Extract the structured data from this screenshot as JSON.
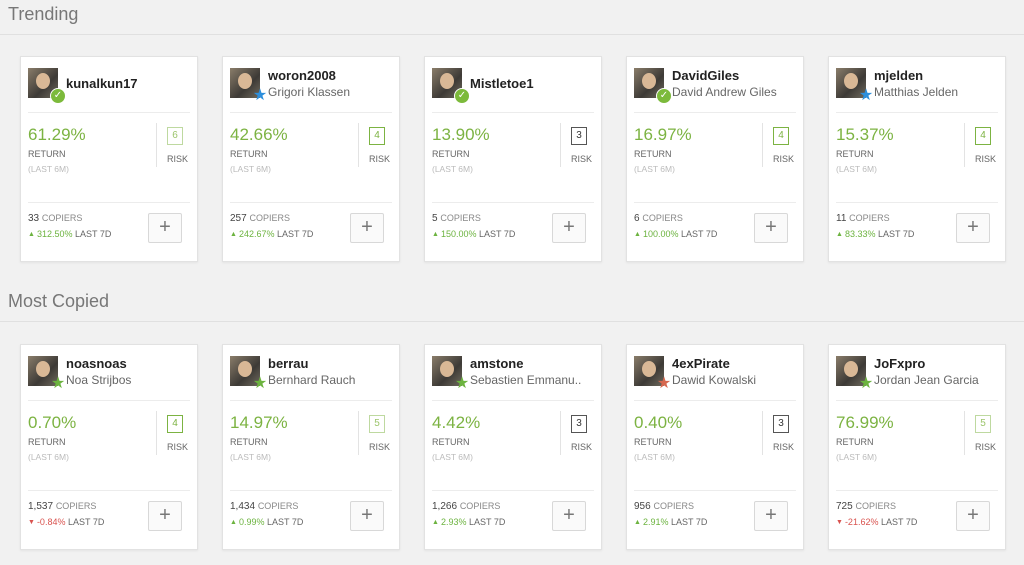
{
  "sections": [
    {
      "title": "Trending",
      "cards": [
        {
          "username": "kunalkun17",
          "full_name": "",
          "badge": "check",
          "return": "61.29%",
          "return_label": "RETURN",
          "return_period": "(LAST 6M)",
          "risk": "6",
          "risk_style": "lite",
          "risk_label": "RISK",
          "copiers": "33",
          "copiers_label": "COPIERS",
          "trend": "up",
          "change": "312.50%",
          "change_label": "LAST 7D"
        },
        {
          "username": "woron2008",
          "full_name": "Grigori Klassen",
          "badge": "star-blue",
          "return": "42.66%",
          "return_label": "RETURN",
          "return_period": "(LAST 6M)",
          "risk": "4",
          "risk_style": "normal",
          "risk_label": "RISK",
          "copiers": "257",
          "copiers_label": "COPIERS",
          "trend": "up",
          "change": "242.67%",
          "change_label": "LAST 7D"
        },
        {
          "username": "Mistletoe1",
          "full_name": "",
          "badge": "check",
          "return": "13.90%",
          "return_label": "RETURN",
          "return_period": "(LAST 6M)",
          "risk": "3",
          "risk_style": "dark",
          "risk_label": "RISK",
          "copiers": "5",
          "copiers_label": "COPIERS",
          "trend": "up",
          "change": "150.00%",
          "change_label": "LAST 7D"
        },
        {
          "username": "DavidGiles",
          "full_name": "David Andrew Giles",
          "badge": "check",
          "return": "16.97%",
          "return_label": "RETURN",
          "return_period": "(LAST 6M)",
          "risk": "4",
          "risk_style": "normal",
          "risk_label": "RISK",
          "copiers": "6",
          "copiers_label": "COPIERS",
          "trend": "up",
          "change": "100.00%",
          "change_label": "LAST 7D"
        },
        {
          "username": "mjelden",
          "full_name": "Matthias Jelden",
          "badge": "star-blue",
          "return": "15.37%",
          "return_label": "RETURN",
          "return_period": "(LAST 6M)",
          "risk": "4",
          "risk_style": "normal",
          "risk_label": "RISK",
          "copiers": "11",
          "copiers_label": "COPIERS",
          "trend": "up",
          "change": "83.33%",
          "change_label": "LAST 7D"
        }
      ]
    },
    {
      "title": "Most Copied",
      "cards": [
        {
          "username": "noasnoas",
          "full_name": "Noa Strijbos",
          "badge": "star-green",
          "return": "0.70%",
          "return_label": "RETURN",
          "return_period": "(LAST 6M)",
          "risk": "4",
          "risk_style": "normal",
          "risk_label": "RISK",
          "copiers": "1,537",
          "copiers_label": "COPIERS",
          "trend": "down",
          "change": "-0.84%",
          "change_label": "LAST 7D"
        },
        {
          "username": "berrau",
          "full_name": "Bernhard Rauch",
          "badge": "star-green",
          "return": "14.97%",
          "return_label": "RETURN",
          "return_period": "(LAST 6M)",
          "risk": "5",
          "risk_style": "lite",
          "risk_label": "RISK",
          "copiers": "1,434",
          "copiers_label": "COPIERS",
          "trend": "up",
          "change": "0.99%",
          "change_label": "LAST 7D"
        },
        {
          "username": "amstone",
          "full_name": "Sebastien Emmanu..",
          "badge": "star-green",
          "return": "4.42%",
          "return_label": "RETURN",
          "return_period": "(LAST 6M)",
          "risk": "3",
          "risk_style": "dark",
          "risk_label": "RISK",
          "copiers": "1,266",
          "copiers_label": "COPIERS",
          "trend": "up",
          "change": "2.93%",
          "change_label": "LAST 7D"
        },
        {
          "username": "4exPirate",
          "full_name": "Dawid Kowalski",
          "badge": "star-red",
          "return": "0.40%",
          "return_label": "RETURN",
          "return_period": "(LAST 6M)",
          "risk": "3",
          "risk_style": "dark",
          "risk_label": "RISK",
          "copiers": "956",
          "copiers_label": "COPIERS",
          "trend": "up",
          "change": "2.91%",
          "change_label": "LAST 7D"
        },
        {
          "username": "JoFxpro",
          "full_name": "Jordan Jean Garcia",
          "badge": "star-green",
          "return": "76.99%",
          "return_label": "RETURN",
          "return_period": "(LAST 6M)",
          "risk": "5",
          "risk_style": "lite",
          "risk_label": "RISK",
          "copiers": "725",
          "copiers_label": "COPIERS",
          "trend": "down",
          "change": "-21.62%",
          "change_label": "LAST 7D"
        }
      ]
    }
  ],
  "plus_symbol": "+",
  "colors": {
    "accent": "#7cb342",
    "positive": "#6cb33f",
    "negative": "#d9534f"
  }
}
